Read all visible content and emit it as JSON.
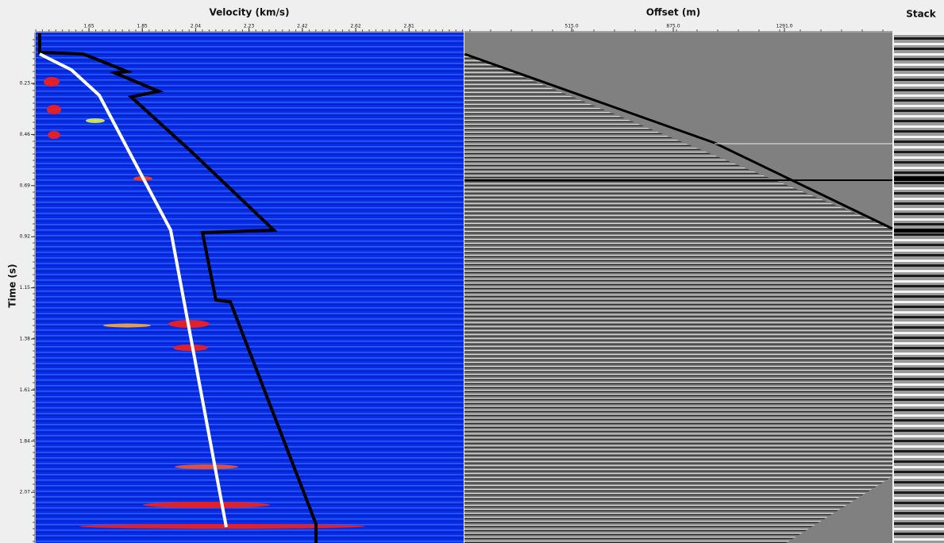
{
  "velocity_panel": {
    "title": "Velocity (km/s)",
    "ticks": [
      "1.65",
      "1.85",
      "2.04",
      "2.23",
      "2.42",
      "2.62",
      "2.81"
    ]
  },
  "time_axis": {
    "title": "Time (s)",
    "ticks": [
      "0.23",
      "0.46",
      "0.69",
      "0.92",
      "1.15",
      "1.38",
      "1.61",
      "1.84",
      "2.07"
    ]
  },
  "offset_panel": {
    "title": "Offset (m)",
    "ticks": [
      "515.0",
      "875.0",
      "1291.0"
    ]
  },
  "stack_panel": {
    "title": "Stack"
  }
}
